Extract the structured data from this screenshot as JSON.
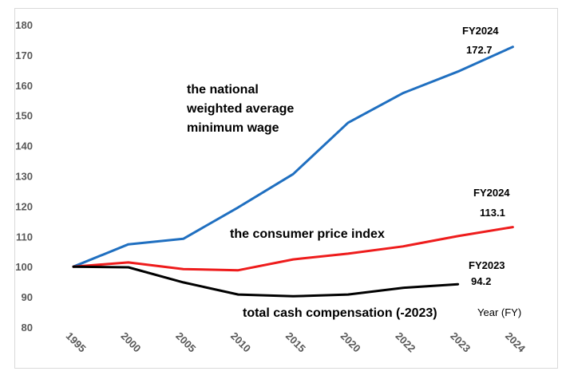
{
  "chart_data": {
    "type": "line",
    "xlabel": "Year (FY)",
    "ylabel": "",
    "ylim": [
      80,
      180
    ],
    "yticks": [
      80,
      90,
      100,
      110,
      120,
      130,
      140,
      150,
      160,
      170,
      180
    ],
    "categories": [
      "1995",
      "2000",
      "2005",
      "2010",
      "2015",
      "2020",
      "2022",
      "2023",
      "2024"
    ],
    "grid": false,
    "legend": "none",
    "series": [
      {
        "name": "the national weighted average minimum wage",
        "name_lines": [
          "the national",
          "weighted average",
          "minimum wage"
        ],
        "color": "#1f6fc0",
        "values": [
          100,
          107.4,
          109.2,
          119.6,
          130.6,
          147.6,
          157.4,
          164.5,
          172.7
        ],
        "end_label": "FY2024",
        "end_value_label": "172.7"
      },
      {
        "name": "the consumer price index",
        "color": "#ee1c1c",
        "values": [
          100,
          101.4,
          99.2,
          98.8,
          102.4,
          104.3,
          106.7,
          110.1,
          113.1
        ],
        "end_label": "FY2024",
        "end_value_label": "113.1"
      },
      {
        "name": "total cash compensation (-2023)",
        "color": "#000000",
        "values": [
          100,
          99.8,
          94.8,
          90.8,
          90.2,
          90.8,
          93.0,
          94.2,
          null
        ],
        "end_label": "FY2023",
        "end_value_label": "94.2"
      }
    ]
  }
}
